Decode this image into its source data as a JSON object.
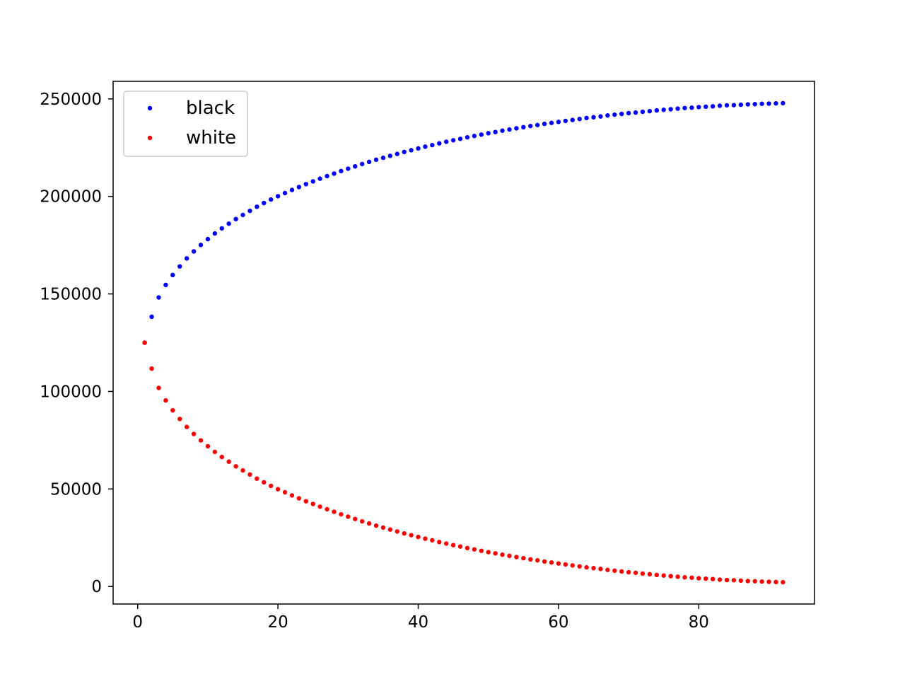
{
  "chart_data": {
    "type": "scatter",
    "title": "",
    "xlabel": "",
    "ylabel": "",
    "xlim": [
      -3.5,
      96.5
    ],
    "ylim": [
      -9000,
      259000
    ],
    "x_ticks": [
      0,
      20,
      40,
      60,
      80
    ],
    "y_ticks": [
      0,
      50000,
      100000,
      150000,
      200000,
      250000
    ],
    "x_tick_labels": [
      "0",
      "20",
      "40",
      "60",
      "80"
    ],
    "y_tick_labels": [
      "0",
      "50000",
      "100000",
      "150000",
      "200000",
      "250000"
    ],
    "grid": false,
    "legend_position": "top-left",
    "x": [
      1,
      2,
      3,
      4,
      5,
      6,
      7,
      8,
      9,
      10,
      11,
      12,
      13,
      14,
      15,
      16,
      17,
      18,
      19,
      20,
      21,
      22,
      23,
      24,
      25,
      26,
      27,
      28,
      29,
      30,
      31,
      32,
      33,
      34,
      35,
      36,
      37,
      38,
      39,
      40,
      41,
      42,
      43,
      44,
      45,
      46,
      47,
      48,
      49,
      50,
      51,
      52,
      53,
      54,
      55,
      56,
      57,
      58,
      59,
      60,
      61,
      62,
      63,
      64,
      65,
      66,
      67,
      68,
      69,
      70,
      71,
      72,
      73,
      74,
      75,
      76,
      77,
      78,
      79,
      80,
      81,
      82,
      83,
      84,
      85,
      86,
      87,
      88,
      89,
      90,
      91,
      92
    ],
    "series": [
      {
        "name": "black",
        "color": "#0000ff",
        "values": [
          125000,
          138300,
          148200,
          154600,
          159700,
          164100,
          168200,
          171800,
          175100,
          178100,
          181000,
          183600,
          186000,
          188400,
          190500,
          192600,
          194700,
          196600,
          198400,
          200100,
          201700,
          203300,
          204800,
          206300,
          207700,
          209100,
          210400,
          211700,
          213000,
          214200,
          215400,
          216600,
          217700,
          218800,
          219800,
          220800,
          221800,
          222800,
          223700,
          224600,
          225500,
          226300,
          227200,
          228000,
          228800,
          229500,
          230300,
          231000,
          231700,
          232400,
          233000,
          233700,
          234300,
          234900,
          235500,
          236100,
          236600,
          237200,
          237700,
          238200,
          238700,
          239200,
          239700,
          240200,
          240600,
          241000,
          241500,
          241900,
          242300,
          242700,
          243000,
          243400,
          243700,
          244100,
          244400,
          244700,
          245000,
          245300,
          245500,
          245800,
          246000,
          246200,
          246500,
          246700,
          246800,
          247000,
          247200,
          247300,
          247500,
          247600,
          247700,
          247800
        ]
      },
      {
        "name": "white",
        "color": "#ff0000",
        "values": [
          125000,
          111700,
          101800,
          95400,
          90300,
          85900,
          81800,
          78200,
          74900,
          71900,
          69000,
          66400,
          64000,
          61600,
          59500,
          57400,
          55300,
          53400,
          51600,
          49900,
          48300,
          46700,
          45200,
          43700,
          42300,
          40900,
          39600,
          38300,
          37000,
          35800,
          34600,
          33400,
          32300,
          31200,
          30200,
          29200,
          28200,
          27200,
          26300,
          25400,
          24500,
          23700,
          22800,
          22000,
          21200,
          20500,
          19700,
          19000,
          18300,
          17600,
          17000,
          16300,
          15700,
          15100,
          14500,
          13900,
          13400,
          12800,
          12300,
          11800,
          11300,
          10800,
          10300,
          9800,
          9400,
          9000,
          8500,
          8100,
          7700,
          7300,
          7000,
          6600,
          6300,
          5900,
          5600,
          5300,
          5000,
          4700,
          4500,
          4200,
          4000,
          3800,
          3500,
          3300,
          3200,
          3000,
          2800,
          2700,
          2500,
          2400,
          2300,
          2200
        ]
      }
    ]
  }
}
